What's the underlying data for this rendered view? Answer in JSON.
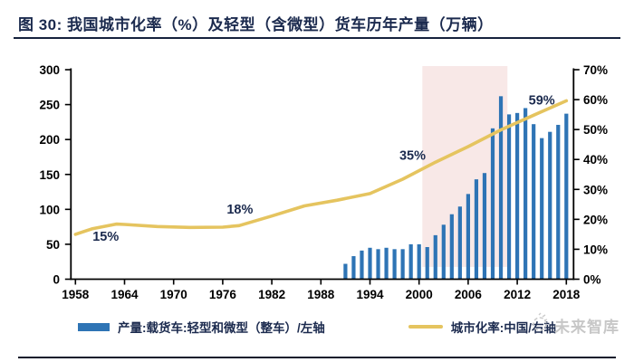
{
  "figure": {
    "title": "图 30: 我国城市化率（%）及轻型（含微型）货车历年产量（万辆）",
    "watermark": "未来智库"
  },
  "legend": {
    "bar_label": "产量:载货车:轻型和微型（整车）/左轴",
    "line_label": "城市化率:中国/右轴"
  },
  "colors": {
    "bar": "#2E74B5",
    "line": "#E5C45F",
    "band": "#F8E8E7",
    "axis": "#000000",
    "annotation": "#1b2a4e",
    "title_navy": "#1b2a4e",
    "watermark_gray": "#c7c7c7"
  },
  "chart_data": {
    "type": "combo",
    "title": "我国城市化率（%）及轻型（含微型）货车历年产量（万辆）",
    "left_axis": {
      "ticks": [
        0,
        50,
        100,
        150,
        200,
        250,
        300
      ],
      "range": [
        0,
        300
      ]
    },
    "right_axis": {
      "ticks": [
        0,
        10,
        20,
        30,
        40,
        50,
        60,
        70
      ],
      "range": [
        0,
        70
      ],
      "suffix": "%"
    },
    "x_axis": {
      "ticks": [
        1958,
        1964,
        1970,
        1976,
        1982,
        1988,
        1994,
        2000,
        2006,
        2012,
        2018
      ],
      "range": [
        1958,
        2018
      ]
    },
    "series": [
      {
        "name": "产量:载货车:轻型和微型（整车）/左轴",
        "type": "bar",
        "axis": "left",
        "years": [
          1991,
          1992,
          1993,
          1994,
          1995,
          1996,
          1997,
          1998,
          1999,
          2000,
          2001,
          2002,
          2003,
          2004,
          2005,
          2006,
          2007,
          2008,
          2009,
          2010,
          2011,
          2012,
          2013,
          2014,
          2015,
          2016,
          2017,
          2018
        ],
        "values": [
          22,
          33,
          41,
          45,
          43,
          45,
          43,
          43,
          50,
          50,
          46,
          63,
          78,
          93,
          104,
          122,
          143,
          152,
          216,
          262,
          236,
          238,
          245,
          222,
          202,
          211,
          221,
          237
        ]
      },
      {
        "name": "城市化率:中国/右轴",
        "type": "line",
        "axis": "right",
        "points": [
          [
            1958,
            15.0
          ],
          [
            1960,
            16.8
          ],
          [
            1963,
            18.4
          ],
          [
            1964,
            18.3
          ],
          [
            1968,
            17.6
          ],
          [
            1972,
            17.3
          ],
          [
            1976,
            17.4
          ],
          [
            1978,
            17.9
          ],
          [
            1982,
            21.1
          ],
          [
            1986,
            24.5
          ],
          [
            1990,
            26.4
          ],
          [
            1994,
            28.6
          ],
          [
            1998,
            33.4
          ],
          [
            2002,
            39.1
          ],
          [
            2006,
            44.3
          ],
          [
            2010,
            49.9
          ],
          [
            2014,
            54.8
          ],
          [
            2018,
            59.6
          ]
        ]
      }
    ],
    "annotations": [
      {
        "label": "15%",
        "year": 1961.7,
        "pct": 14.4
      },
      {
        "label": "18%",
        "year": 1978.1,
        "pct": 23.4
      },
      {
        "label": "35%",
        "year": 1999.2,
        "pct": 41.5
      },
      {
        "label": "59%",
        "year": 2015.0,
        "pct": 59.8
      }
    ],
    "highlight_band": {
      "from_year": 2000.4,
      "to_year": 2010.8,
      "top_pct": 71.2,
      "bottom_pct": 4.1
    },
    "legend_position": "bottom",
    "grid": false
  }
}
